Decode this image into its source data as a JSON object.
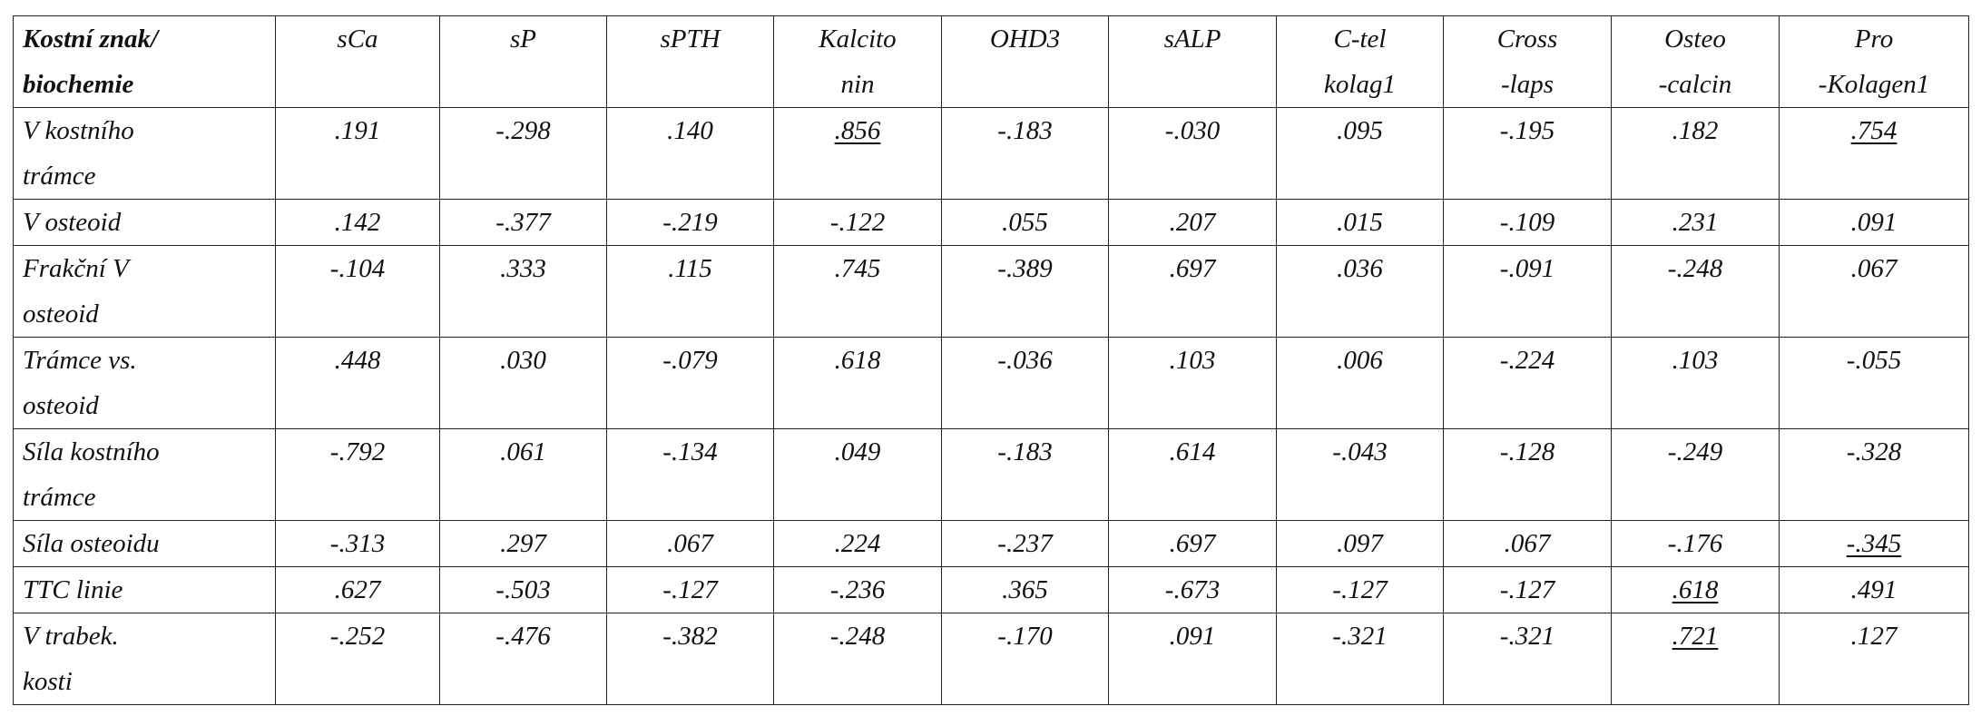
{
  "table": {
    "header": [
      [
        "Kostní znak/",
        "biochemie"
      ],
      [
        "sCa"
      ],
      [
        "sP"
      ],
      [
        "sPTH"
      ],
      [
        "Kalcito",
        "nin"
      ],
      [
        "OHD3"
      ],
      [
        "sALP"
      ],
      [
        "C-tel",
        "kolag1"
      ],
      [
        "Cross",
        "-laps"
      ],
      [
        "Osteo",
        "-calcin"
      ],
      [
        "Pro",
        "-Kolagen1"
      ]
    ],
    "rows": [
      {
        "label": [
          "V kostního",
          "trámce"
        ],
        "values": [
          ".191",
          "-.298",
          ".140",
          ".856",
          "-.183",
          "-.030",
          ".095",
          "-.195",
          ".182",
          ".754"
        ]
      },
      {
        "label": [
          "V osteoid"
        ],
        "values": [
          ".142",
          "-.377",
          "-.219",
          "-.122",
          ".055",
          ".207",
          ".015",
          "-.109",
          ".231",
          ".091"
        ]
      },
      {
        "label": [
          "Frakční V",
          "osteoid"
        ],
        "values": [
          "-.104",
          ".333",
          ".115",
          ".745",
          "-.389",
          ".697",
          ".036",
          "-.091",
          "-.248",
          ".067"
        ]
      },
      {
        "label": [
          "Trámce vs.",
          "osteoid"
        ],
        "values": [
          ".448",
          ".030",
          "-.079",
          ".618",
          "-.036",
          ".103",
          ".006",
          "-.224",
          ".103",
          "-.055"
        ]
      },
      {
        "label": [
          "Síla kostního",
          "trámce"
        ],
        "values": [
          "-.792",
          ".061",
          "-.134",
          ".049",
          "-.183",
          ".614",
          "-.043",
          "-.128",
          "-.249",
          "-.328"
        ]
      },
      {
        "label": [
          "Síla osteoidu"
        ],
        "values": [
          "-.313",
          ".297",
          ".067",
          ".224",
          "-.237",
          ".697",
          ".097",
          ".067",
          "-.176",
          "-.345"
        ]
      },
      {
        "label": [
          "TTC linie"
        ],
        "values": [
          ".627",
          "-.503",
          "-.127",
          "-.236",
          ".365",
          "-.673",
          "-.127",
          "-.127",
          ".618",
          ".491"
        ]
      },
      {
        "label": [
          "V trabek.",
          "kosti"
        ],
        "values": [
          "-.252",
          "-.476",
          "-.382",
          "-.248",
          "-.170",
          ".091",
          "-.321",
          "-.321",
          ".721",
          ".127"
        ]
      }
    ],
    "underlined_cells": [
      [
        0,
        3
      ],
      [
        0,
        9
      ],
      [
        5,
        9
      ],
      [
        6,
        8
      ],
      [
        7,
        8
      ]
    ]
  }
}
